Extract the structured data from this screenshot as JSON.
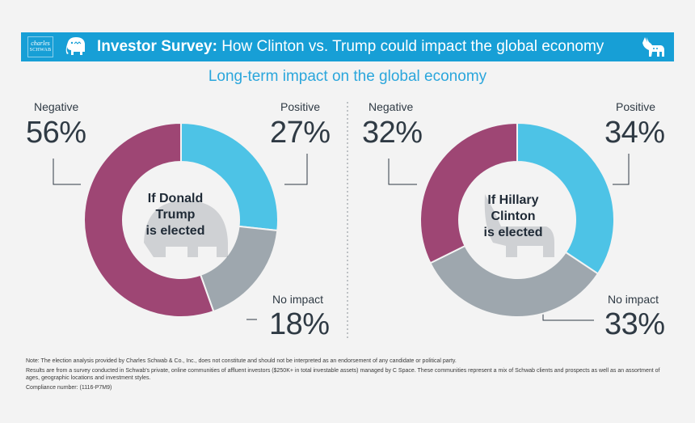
{
  "header": {
    "logo_line1": "charles",
    "logo_line2": "SCHWAB",
    "title_bold": "Investor Survey:",
    "title_rest": "How Clinton vs. Trump could impact the global economy",
    "elephant_icon": "elephant-icon",
    "donkey_icon": "donkey-icon"
  },
  "subtitle": "Long-term impact on the global economy",
  "colors": {
    "negative": "#9e4674",
    "positive": "#4dc3e6",
    "no_impact": "#9ea7ae",
    "banner": "#179fd6",
    "subtitle": "#2aa6dc"
  },
  "chart_data": [
    {
      "type": "pie",
      "center_label": [
        "If Donald",
        "Trump",
        "is elected"
      ],
      "categories": [
        "Positive",
        "No impact",
        "Negative"
      ],
      "values": [
        27,
        18,
        56
      ],
      "value_labels": [
        "27%",
        "18%",
        "56%"
      ]
    },
    {
      "type": "pie",
      "center_label": [
        "If Hillary",
        "Clinton",
        "is elected"
      ],
      "categories": [
        "Positive",
        "No impact",
        "Negative"
      ],
      "values": [
        34,
        33,
        32
      ],
      "value_labels": [
        "34%",
        "33%",
        "32%"
      ]
    }
  ],
  "notes": {
    "note1": "Note: The election analysis provided by Charles Schwab & Co., Inc., does not constitute and should not be interpreted as an endorsement of any candidate or political party.",
    "note2": "Results are from a survey conducted in Schwab's private, online communities of affluent investors ($250K+ in total investable assets) managed by C Space. These communities represent a mix of Schwab clients and prospects as well as an assortment of ages, geographic locations and investment styles.",
    "note3": "Compliance number: (1116-P7M9)"
  }
}
